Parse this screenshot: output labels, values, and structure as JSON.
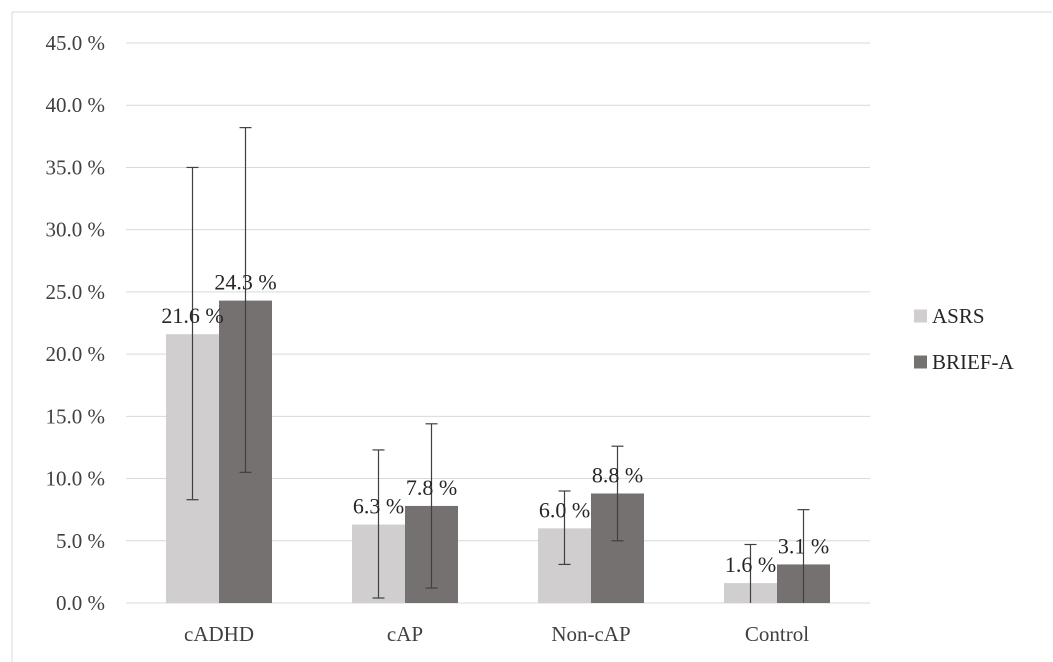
{
  "chart_data": {
    "type": "bar",
    "title": "",
    "xlabel": "",
    "ylabel": "",
    "categories": [
      "cADHD",
      "cAP",
      "Non-cAP",
      "Control"
    ],
    "series": [
      {
        "name": "ASRS",
        "color": "#d0cece",
        "values": [
          21.6,
          6.3,
          6.0,
          1.6
        ],
        "labels": [
          "21.6 %",
          "6.3 %",
          "6.0 %",
          "1.6 %"
        ],
        "error_low": [
          8.3,
          0.4,
          3.1,
          0.0
        ],
        "error_high": [
          35.0,
          12.3,
          9.0,
          4.7
        ]
      },
      {
        "name": "BRIEF-A",
        "color": "#767171",
        "values": [
          24.3,
          7.8,
          8.8,
          3.1
        ],
        "labels": [
          "24.3 %",
          "7.8 %",
          "8.8 %",
          "3.1 %"
        ],
        "error_low": [
          10.5,
          1.2,
          5.0,
          0.0
        ],
        "error_high": [
          38.2,
          14.4,
          12.6,
          7.5
        ]
      }
    ],
    "ylim": [
      0,
      45
    ],
    "yticks": [
      0,
      5,
      10,
      15,
      20,
      25,
      30,
      35,
      40,
      45
    ],
    "ytick_labels": [
      "0.0 %",
      "5.0 %",
      "10.0 %",
      "15.0 %",
      "20.0 %",
      "25.0 %",
      "30.0 %",
      "35.0 %",
      "40.0 %",
      "45.0 %"
    ],
    "grid": true,
    "legend_position": "right",
    "error_bars": true
  }
}
